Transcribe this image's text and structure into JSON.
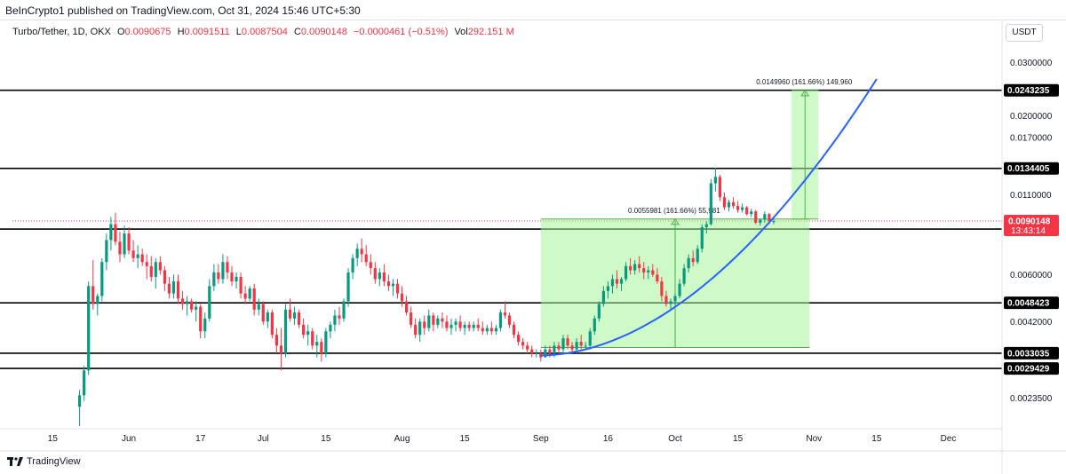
{
  "header": {
    "publisher": "BeInCrypto1",
    "published_text": "published on TradingView.com, Oct 31, 2024 15:46 UTC+5:30"
  },
  "legend": {
    "symbol": "Turbo/Tether, 1D, OKX",
    "open_label": "O",
    "open": "0.0090675",
    "high_label": "H",
    "high": "0.0091511",
    "low_label": "L",
    "low": "0.0087504",
    "close_label": "C",
    "close": "0.0090148",
    "change": "−0.0000461 (−0.51%)",
    "volume_label": "Vol",
    "volume": "292.151 M"
  },
  "currency": "USDT",
  "footer": {
    "brand": "TradingView"
  },
  "colors": {
    "up": "#089981",
    "down": "#f23645",
    "curve": "#2962ff",
    "measure_fill": "#a5f59a",
    "measure_line": "#4caf50"
  },
  "chart_data": {
    "type": "candlestick",
    "x_labels": [
      {
        "text": "15",
        "day": 15
      },
      {
        "text": "Jun",
        "day": 32
      },
      {
        "text": "17",
        "day": 48
      },
      {
        "text": "Jul",
        "day": 62
      },
      {
        "text": "15",
        "day": 76
      },
      {
        "text": "Aug",
        "day": 93
      },
      {
        "text": "15",
        "day": 107
      },
      {
        "text": "Sep",
        "day": 124
      },
      {
        "text": "16",
        "day": 139
      },
      {
        "text": "Oct",
        "day": 154
      },
      {
        "text": "15",
        "day": 168
      },
      {
        "text": "Nov",
        "day": 185
      },
      {
        "text": "15",
        "day": 199
      },
      {
        "text": "Dec",
        "day": 215
      }
    ],
    "y_ticks": [
      "0.0300000",
      "0.0200000",
      "0.0170000",
      "0.0110000",
      "0.0060000",
      "0.0042000",
      "0.0023500"
    ],
    "y_tick_values": [
      0.03,
      0.02,
      0.017,
      0.011,
      0.006,
      0.0042,
      0.00235
    ],
    "y_range": [
      0.0019,
      0.034
    ],
    "y_scale": "log",
    "last_price": {
      "value": 0.0090148,
      "label": "0.0090148",
      "countdown": "13:43:14"
    },
    "levels": [
      {
        "value": 0.0243235,
        "label": "0.0243235"
      },
      {
        "value": 0.0134405,
        "label": "0.0134405"
      },
      {
        "value": 0.0084793,
        "label": "0.0084793"
      },
      {
        "value": 0.0048423,
        "label": "0.0048423"
      },
      {
        "value": 0.0033035,
        "label": "0.0033035"
      },
      {
        "value": 0.0029429,
        "label": "0.0029429"
      }
    ],
    "measures": [
      {
        "label": "0.0055981 (161.66%) 55,981",
        "from_day": 124,
        "to_day": 184,
        "low": 0.00345,
        "high": 0.00915
      },
      {
        "label": "0.0149960 (161.66%) 149,960",
        "from_day": 180,
        "to_day": 186,
        "low": 0.00915,
        "high": 0.0243
      }
    ],
    "curve": {
      "from_day": 124,
      "to_day": 199,
      "start": 0.00325,
      "end": 0.0265
    },
    "candles_ohlc": [
      [
        21,
        0.0022,
        0.0025,
        0.0019,
        0.0024
      ],
      [
        22,
        0.0024,
        0.003,
        0.0023,
        0.0029
      ],
      [
        23,
        0.0029,
        0.0057,
        0.0028,
        0.0055
      ],
      [
        24,
        0.0055,
        0.0067,
        0.0046,
        0.0048
      ],
      [
        25,
        0.0048,
        0.0052,
        0.0044,
        0.0051
      ],
      [
        26,
        0.0051,
        0.0068,
        0.0049,
        0.0066
      ],
      [
        27,
        0.0066,
        0.0082,
        0.0062,
        0.0078
      ],
      [
        28,
        0.0078,
        0.0093,
        0.0072,
        0.0088
      ],
      [
        29,
        0.0088,
        0.0096,
        0.0075,
        0.0077
      ],
      [
        30,
        0.0077,
        0.0083,
        0.0066,
        0.007
      ],
      [
        31,
        0.007,
        0.0087,
        0.0068,
        0.0082
      ],
      [
        32,
        0.0082,
        0.0086,
        0.007,
        0.0072
      ],
      [
        33,
        0.0072,
        0.0078,
        0.0066,
        0.0068
      ],
      [
        34,
        0.0068,
        0.0075,
        0.0063,
        0.007
      ],
      [
        35,
        0.007,
        0.0073,
        0.0064,
        0.0066
      ],
      [
        36,
        0.0066,
        0.007,
        0.0058,
        0.0064
      ],
      [
        37,
        0.0064,
        0.0069,
        0.0057,
        0.0059
      ],
      [
        38,
        0.0059,
        0.0068,
        0.0054,
        0.0066
      ],
      [
        39,
        0.0066,
        0.0069,
        0.006,
        0.0062
      ],
      [
        40,
        0.0062,
        0.0064,
        0.0053,
        0.0056
      ],
      [
        41,
        0.0056,
        0.0059,
        0.005,
        0.0052
      ],
      [
        42,
        0.0052,
        0.006,
        0.005,
        0.0057
      ],
      [
        43,
        0.0057,
        0.006,
        0.0048,
        0.005
      ],
      [
        44,
        0.005,
        0.0053,
        0.0046,
        0.0048
      ],
      [
        45,
        0.0048,
        0.0051,
        0.0044,
        0.0049
      ],
      [
        46,
        0.0049,
        0.005,
        0.0045,
        0.0046
      ],
      [
        47,
        0.0046,
        0.0049,
        0.0042,
        0.0047
      ],
      [
        48,
        0.0047,
        0.0048,
        0.0037,
        0.0039
      ],
      [
        49,
        0.0039,
        0.0045,
        0.0037,
        0.0043
      ],
      [
        50,
        0.0043,
        0.0058,
        0.0042,
        0.0055
      ],
      [
        51,
        0.0055,
        0.0065,
        0.0053,
        0.0061
      ],
      [
        52,
        0.0061,
        0.0065,
        0.0056,
        0.0058
      ],
      [
        53,
        0.0058,
        0.007,
        0.0056,
        0.0066
      ],
      [
        54,
        0.0066,
        0.0069,
        0.0058,
        0.0061
      ],
      [
        55,
        0.0061,
        0.0064,
        0.0055,
        0.0057
      ],
      [
        56,
        0.0057,
        0.0061,
        0.0054,
        0.0059
      ],
      [
        57,
        0.0059,
        0.0061,
        0.005,
        0.0052
      ],
      [
        58,
        0.0052,
        0.0055,
        0.0048,
        0.005
      ],
      [
        59,
        0.005,
        0.0055,
        0.0049,
        0.0054
      ],
      [
        60,
        0.0054,
        0.0056,
        0.0044,
        0.0046
      ],
      [
        61,
        0.0046,
        0.005,
        0.0044,
        0.0048
      ],
      [
        62,
        0.0048,
        0.0049,
        0.0041,
        0.0042
      ],
      [
        63,
        0.0042,
        0.0046,
        0.004,
        0.0045
      ],
      [
        64,
        0.0045,
        0.0046,
        0.0037,
        0.0038
      ],
      [
        65,
        0.0038,
        0.004,
        0.0033,
        0.0035
      ],
      [
        66,
        0.0035,
        0.004,
        0.0029,
        0.0033
      ],
      [
        67,
        0.0033,
        0.0048,
        0.0032,
        0.0046
      ],
      [
        68,
        0.0046,
        0.005,
        0.0042,
        0.0043
      ],
      [
        69,
        0.0043,
        0.0047,
        0.0041,
        0.0045
      ],
      [
        70,
        0.0045,
        0.0046,
        0.004,
        0.0041
      ],
      [
        71,
        0.0041,
        0.0043,
        0.0037,
        0.0038
      ],
      [
        72,
        0.0038,
        0.0041,
        0.0035,
        0.0039
      ],
      [
        73,
        0.0039,
        0.004,
        0.0034,
        0.0035
      ],
      [
        74,
        0.0035,
        0.0038,
        0.0032,
        0.0036
      ],
      [
        75,
        0.0036,
        0.0037,
        0.0031,
        0.0033
      ],
      [
        76,
        0.0033,
        0.004,
        0.0032,
        0.0039
      ],
      [
        77,
        0.0039,
        0.0042,
        0.0037,
        0.0041
      ],
      [
        78,
        0.0041,
        0.0046,
        0.0039,
        0.0044
      ],
      [
        79,
        0.0044,
        0.0047,
        0.0041,
        0.0043
      ],
      [
        80,
        0.0043,
        0.005,
        0.0042,
        0.0049
      ],
      [
        81,
        0.0049,
        0.0063,
        0.0047,
        0.0061
      ],
      [
        82,
        0.0061,
        0.007,
        0.0058,
        0.0068
      ],
      [
        83,
        0.0068,
        0.0076,
        0.0064,
        0.0073
      ],
      [
        84,
        0.0073,
        0.0079,
        0.0066,
        0.007
      ],
      [
        85,
        0.007,
        0.0075,
        0.0064,
        0.0066
      ],
      [
        86,
        0.0066,
        0.007,
        0.006,
        0.0063
      ],
      [
        87,
        0.0063,
        0.0066,
        0.0056,
        0.0058
      ],
      [
        88,
        0.0058,
        0.0063,
        0.0055,
        0.0061
      ],
      [
        89,
        0.0061,
        0.0065,
        0.0055,
        0.0057
      ],
      [
        90,
        0.0057,
        0.006,
        0.0053,
        0.0055
      ],
      [
        91,
        0.0055,
        0.0058,
        0.0051,
        0.0056
      ],
      [
        92,
        0.0056,
        0.0058,
        0.005,
        0.0052
      ],
      [
        93,
        0.0052,
        0.0055,
        0.0047,
        0.0049
      ],
      [
        94,
        0.0049,
        0.0051,
        0.0044,
        0.0045
      ],
      [
        95,
        0.0045,
        0.0047,
        0.004,
        0.0041
      ],
      [
        96,
        0.0041,
        0.0043,
        0.0037,
        0.0038
      ],
      [
        97,
        0.0038,
        0.0043,
        0.0036,
        0.0042
      ],
      [
        98,
        0.0042,
        0.0044,
        0.0038,
        0.004
      ],
      [
        99,
        0.004,
        0.0046,
        0.0039,
        0.0044
      ],
      [
        100,
        0.0044,
        0.0045,
        0.0039,
        0.0041
      ],
      [
        101,
        0.0041,
        0.0044,
        0.004,
        0.0043
      ],
      [
        102,
        0.0043,
        0.0045,
        0.004,
        0.0042
      ],
      [
        103,
        0.0042,
        0.0044,
        0.0039,
        0.004
      ],
      [
        104,
        0.004,
        0.0043,
        0.0038,
        0.0041
      ],
      [
        105,
        0.0041,
        0.0043,
        0.0039,
        0.0042
      ],
      [
        106,
        0.0042,
        0.0044,
        0.0039,
        0.004
      ],
      [
        107,
        0.004,
        0.0042,
        0.0038,
        0.0041
      ],
      [
        108,
        0.0041,
        0.0042,
        0.0039,
        0.004
      ],
      [
        109,
        0.004,
        0.0042,
        0.0039,
        0.0041
      ],
      [
        110,
        0.0041,
        0.0043,
        0.0039,
        0.004
      ],
      [
        111,
        0.004,
        0.0042,
        0.0038,
        0.0039
      ],
      [
        112,
        0.0039,
        0.0041,
        0.0038,
        0.004
      ],
      [
        113,
        0.004,
        0.0042,
        0.0038,
        0.0039
      ],
      [
        114,
        0.0039,
        0.0041,
        0.0038,
        0.004
      ],
      [
        115,
        0.004,
        0.0046,
        0.0039,
        0.0045
      ],
      [
        116,
        0.0045,
        0.0049,
        0.0043,
        0.0044
      ],
      [
        117,
        0.0044,
        0.0045,
        0.004,
        0.0041
      ],
      [
        118,
        0.0041,
        0.0042,
        0.0037,
        0.0038
      ],
      [
        119,
        0.0038,
        0.0039,
        0.0035,
        0.0036
      ],
      [
        120,
        0.0036,
        0.0037,
        0.0034,
        0.0035
      ],
      [
        121,
        0.0035,
        0.0036,
        0.0033,
        0.0034
      ],
      [
        122,
        0.0034,
        0.0035,
        0.0032,
        0.0033
      ],
      [
        123,
        0.0033,
        0.0034,
        0.0032,
        0.0033
      ],
      [
        124,
        0.0033,
        0.0034,
        0.0031,
        0.0032
      ],
      [
        125,
        0.0032,
        0.0035,
        0.0032,
        0.0034
      ],
      [
        126,
        0.0034,
        0.0035,
        0.0032,
        0.0033
      ],
      [
        127,
        0.0033,
        0.0036,
        0.0032,
        0.0035
      ],
      [
        128,
        0.0035,
        0.0036,
        0.0033,
        0.0034
      ],
      [
        129,
        0.0034,
        0.0038,
        0.0033,
        0.0037
      ],
      [
        130,
        0.0037,
        0.0038,
        0.0034,
        0.0035
      ],
      [
        131,
        0.0035,
        0.0036,
        0.0033,
        0.0034
      ],
      [
        132,
        0.0034,
        0.0037,
        0.0033,
        0.0036
      ],
      [
        133,
        0.0036,
        0.0038,
        0.0034,
        0.0035
      ],
      [
        134,
        0.0035,
        0.0036,
        0.0034,
        0.0035
      ],
      [
        135,
        0.0035,
        0.004,
        0.0034,
        0.0039
      ],
      [
        136,
        0.0039,
        0.0044,
        0.0038,
        0.0043
      ],
      [
        137,
        0.0043,
        0.0049,
        0.0042,
        0.0048
      ],
      [
        138,
        0.0048,
        0.0055,
        0.0047,
        0.0053
      ],
      [
        139,
        0.0053,
        0.0057,
        0.005,
        0.0055
      ],
      [
        140,
        0.0055,
        0.006,
        0.0052,
        0.0058
      ],
      [
        141,
        0.0058,
        0.0062,
        0.0054,
        0.0056
      ],
      [
        142,
        0.0056,
        0.0059,
        0.0053,
        0.0058
      ],
      [
        143,
        0.0058,
        0.0066,
        0.0057,
        0.0064
      ],
      [
        144,
        0.0064,
        0.0068,
        0.006,
        0.0062
      ],
      [
        145,
        0.0062,
        0.0067,
        0.006,
        0.0065
      ],
      [
        146,
        0.0065,
        0.0069,
        0.0061,
        0.0063
      ],
      [
        147,
        0.0063,
        0.0066,
        0.0058,
        0.0061
      ],
      [
        148,
        0.0061,
        0.0064,
        0.0058,
        0.0062
      ],
      [
        149,
        0.0062,
        0.0065,
        0.0059,
        0.006
      ],
      [
        150,
        0.006,
        0.0063,
        0.0056,
        0.0057
      ],
      [
        151,
        0.0057,
        0.0059,
        0.0049,
        0.0051
      ],
      [
        152,
        0.0051,
        0.0053,
        0.0047,
        0.0048
      ],
      [
        153,
        0.0048,
        0.005,
        0.0046,
        0.0049
      ],
      [
        154,
        0.0049,
        0.0052,
        0.0047,
        0.0051
      ],
      [
        155,
        0.0051,
        0.0058,
        0.005,
        0.0056
      ],
      [
        156,
        0.0056,
        0.0065,
        0.0055,
        0.0063
      ],
      [
        157,
        0.0063,
        0.007,
        0.0061,
        0.0068
      ],
      [
        158,
        0.0068,
        0.0072,
        0.0064,
        0.0066
      ],
      [
        159,
        0.0066,
        0.0075,
        0.0065,
        0.0073
      ],
      [
        160,
        0.0073,
        0.0088,
        0.0071,
        0.0086
      ],
      [
        161,
        0.0086,
        0.009,
        0.0082,
        0.0088
      ],
      [
        162,
        0.0088,
        0.0124,
        0.0087,
        0.012
      ],
      [
        163,
        0.012,
        0.0135,
        0.0113,
        0.0126
      ],
      [
        164,
        0.0126,
        0.0128,
        0.0105,
        0.0108
      ],
      [
        165,
        0.0108,
        0.0112,
        0.0098,
        0.01
      ],
      [
        166,
        0.01,
        0.0106,
        0.0097,
        0.0104
      ],
      [
        167,
        0.0104,
        0.0108,
        0.0099,
        0.0101
      ],
      [
        168,
        0.0101,
        0.0105,
        0.0096,
        0.0098
      ],
      [
        169,
        0.0098,
        0.0103,
        0.0096,
        0.01
      ],
      [
        170,
        0.01,
        0.0101,
        0.0094,
        0.0095
      ],
      [
        171,
        0.0095,
        0.0099,
        0.0093,
        0.0097
      ],
      [
        172,
        0.0097,
        0.0098,
        0.0088,
        0.0089
      ],
      [
        173,
        0.0089,
        0.0092,
        0.0087,
        0.0091
      ],
      [
        174,
        0.0091,
        0.0097,
        0.0089,
        0.0095
      ],
      [
        175,
        0.0095,
        0.0096,
        0.0088,
        0.009
      ],
      [
        176,
        0.009,
        0.0092,
        0.0088,
        0.009
      ]
    ]
  }
}
